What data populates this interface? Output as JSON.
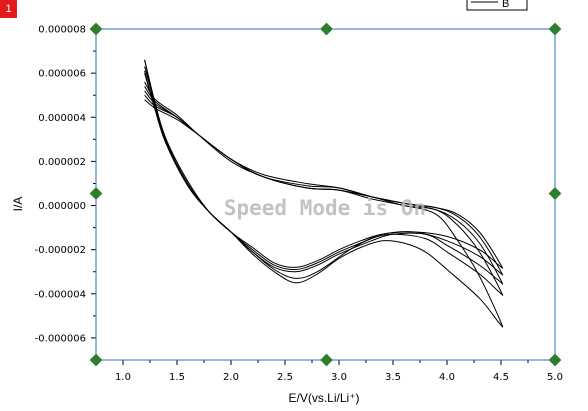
{
  "badge": {
    "label": "1"
  },
  "watermark": "Speed Mode is On",
  "chart_data": {
    "type": "line",
    "title": "",
    "xlabel": "E/V(vs.Li/Li⁺)",
    "ylabel": "I/A",
    "xlim": [
      0.75,
      5.0
    ],
    "ylim": [
      -7e-06,
      8e-06
    ],
    "x_ticks": [
      "1.0",
      "1.5",
      "2.0",
      "2.5",
      "3.0",
      "3.5",
      "4.0",
      "4.5",
      "5.0"
    ],
    "y_ticks": [
      "0.000008",
      "0.000006",
      "0.000004",
      "0.000002",
      "0.000000",
      "-0.000002",
      "-0.000004",
      "-0.000006"
    ],
    "grid": false,
    "legend": {
      "position": "top-right",
      "entries": [
        "B"
      ]
    },
    "colors": {
      "series": "#000000",
      "frame": "#2a6fc9",
      "handles": "#2e7d2e",
      "axis": "#000000"
    },
    "series": [
      {
        "x": [
          1.2,
          1.3,
          1.5,
          1.7,
          2.0,
          2.3,
          2.7,
          3.0,
          3.3,
          3.6,
          3.9,
          4.1,
          4.3,
          4.5,
          4.48,
          4.3,
          4.0,
          3.7,
          3.4,
          3.2,
          3.0,
          2.8,
          2.6,
          2.4,
          2.2,
          2.0,
          1.8,
          1.6,
          1.4,
          1.3,
          1.2
        ],
        "y": [
          4.8e-06,
          4.4e-06,
          3.9e-06,
          3.2e-06,
          2.1e-06,
          1.4e-06,
          1e-06,
          8e-07,
          4e-07,
          1e-07,
          -1e-07,
          -4e-07,
          -1.2e-06,
          -2.7e-06,
          -2.7e-06,
          -2e-06,
          -1.4e-06,
          -1.2e-06,
          -1.3e-06,
          -1.6e-06,
          -2e-06,
          -2.5e-06,
          -2.8e-06,
          -2.6e-06,
          -1.9e-06,
          -1.2e-06,
          -3e-07,
          1.1e-06,
          3e-06,
          4.6e-06,
          6.6e-06
        ]
      },
      {
        "x": [
          1.2,
          1.3,
          1.5,
          1.7,
          2.0,
          2.3,
          2.7,
          3.0,
          3.3,
          3.6,
          3.9,
          4.1,
          4.3,
          4.5,
          4.48,
          4.3,
          4.0,
          3.7,
          3.4,
          3.2,
          3.0,
          2.8,
          2.6,
          2.4,
          2.2,
          2.0,
          1.8,
          1.6,
          1.4,
          1.3,
          1.2
        ],
        "y": [
          5e-06,
          4.5e-06,
          4e-06,
          3.2e-06,
          2.1e-06,
          1.3e-06,
          9e-07,
          8e-07,
          4e-07,
          1e-07,
          -1e-07,
          -5e-07,
          -1.4e-06,
          -3e-06,
          -3e-06,
          -2.3e-06,
          -1.6e-06,
          -1.2e-06,
          -1.3e-06,
          -1.7e-06,
          -2.1e-06,
          -2.6e-06,
          -2.9e-06,
          -2.7e-06,
          -2e-06,
          -1.2e-06,
          -3e-07,
          1e-06,
          2.9e-06,
          4.5e-06,
          6.3e-06
        ]
      },
      {
        "x": [
          1.2,
          1.3,
          1.5,
          1.7,
          2.0,
          2.3,
          2.7,
          3.0,
          3.3,
          3.6,
          3.9,
          4.1,
          4.3,
          4.5,
          4.48,
          4.3,
          4.0,
          3.8,
          3.5,
          3.3,
          3.0,
          2.8,
          2.6,
          2.4,
          2.2,
          2.0,
          1.8,
          1.6,
          1.4,
          1.3,
          1.2
        ],
        "y": [
          5.2e-06,
          4.6e-06,
          4e-06,
          3.2e-06,
          2.1e-06,
          1.3e-06,
          8e-07,
          7e-07,
          4e-07,
          1e-07,
          -2e-07,
          -7e-07,
          -1.7e-06,
          -3.4e-06,
          -3.4e-06,
          -2.7e-06,
          -1.8e-06,
          -1.3e-06,
          -1.3e-06,
          -1.6e-06,
          -2.2e-06,
          -2.7e-06,
          -3e-06,
          -2.8e-06,
          -2.1e-06,
          -1.2e-06,
          -3e-07,
          9e-07,
          2.8e-06,
          4.3e-06,
          6e-06
        ]
      },
      {
        "x": [
          1.2,
          1.3,
          1.5,
          1.7,
          2.0,
          2.3,
          2.7,
          3.0,
          3.3,
          3.6,
          3.9,
          4.1,
          4.3,
          4.5,
          4.48,
          4.3,
          4.0,
          3.8,
          3.5,
          3.3,
          3.1,
          2.8,
          2.6,
          2.4,
          2.2,
          2.0,
          1.8,
          1.6,
          1.4,
          1.3,
          1.2
        ],
        "y": [
          5.4e-06,
          4.7e-06,
          4e-06,
          3.2e-06,
          2.1e-06,
          1.3e-06,
          8e-07,
          7e-07,
          4e-07,
          0.0,
          -2e-07,
          -9e-07,
          -2.1e-06,
          -3.9e-06,
          -3.9e-06,
          -3.1e-06,
          -2.1e-06,
          -1.5e-06,
          -1.3e-06,
          -1.5e-06,
          -2e-06,
          -3e-06,
          -3.3e-06,
          -2.9e-06,
          -2.1e-06,
          -1.2e-06,
          -3e-07,
          9e-07,
          2.8e-06,
          4.3e-06,
          6.1e-06
        ]
      },
      {
        "x": [
          1.2,
          1.3,
          1.5,
          1.7,
          2.0,
          2.3,
          2.7,
          3.0,
          3.3,
          3.6,
          3.9,
          4.1,
          4.3,
          4.5,
          4.48,
          4.3,
          4.0,
          3.8,
          3.6,
          3.4,
          3.2,
          3.0,
          2.8,
          2.6,
          2.4,
          2.2,
          2.0,
          1.8,
          1.6,
          1.4,
          1.3,
          1.2
        ],
        "y": [
          5.6e-06,
          4.8e-06,
          4.1e-06,
          3.2e-06,
          2e-06,
          1.3e-06,
          8e-07,
          7e-07,
          3e-07,
          0.0,
          -4e-07,
          -1.6e-06,
          -3.2e-06,
          -5.3e-06,
          -5.3e-06,
          -4.2e-06,
          -2.9e-06,
          -2.1e-06,
          -1.7e-06,
          -1.6e-06,
          -1.9e-06,
          -2.4e-06,
          -3.1e-06,
          -3.5e-06,
          -3e-06,
          -2.2e-06,
          -1.2e-06,
          -3e-07,
          9e-07,
          2.8e-06,
          4.4e-06,
          6.6e-06
        ]
      }
    ]
  }
}
